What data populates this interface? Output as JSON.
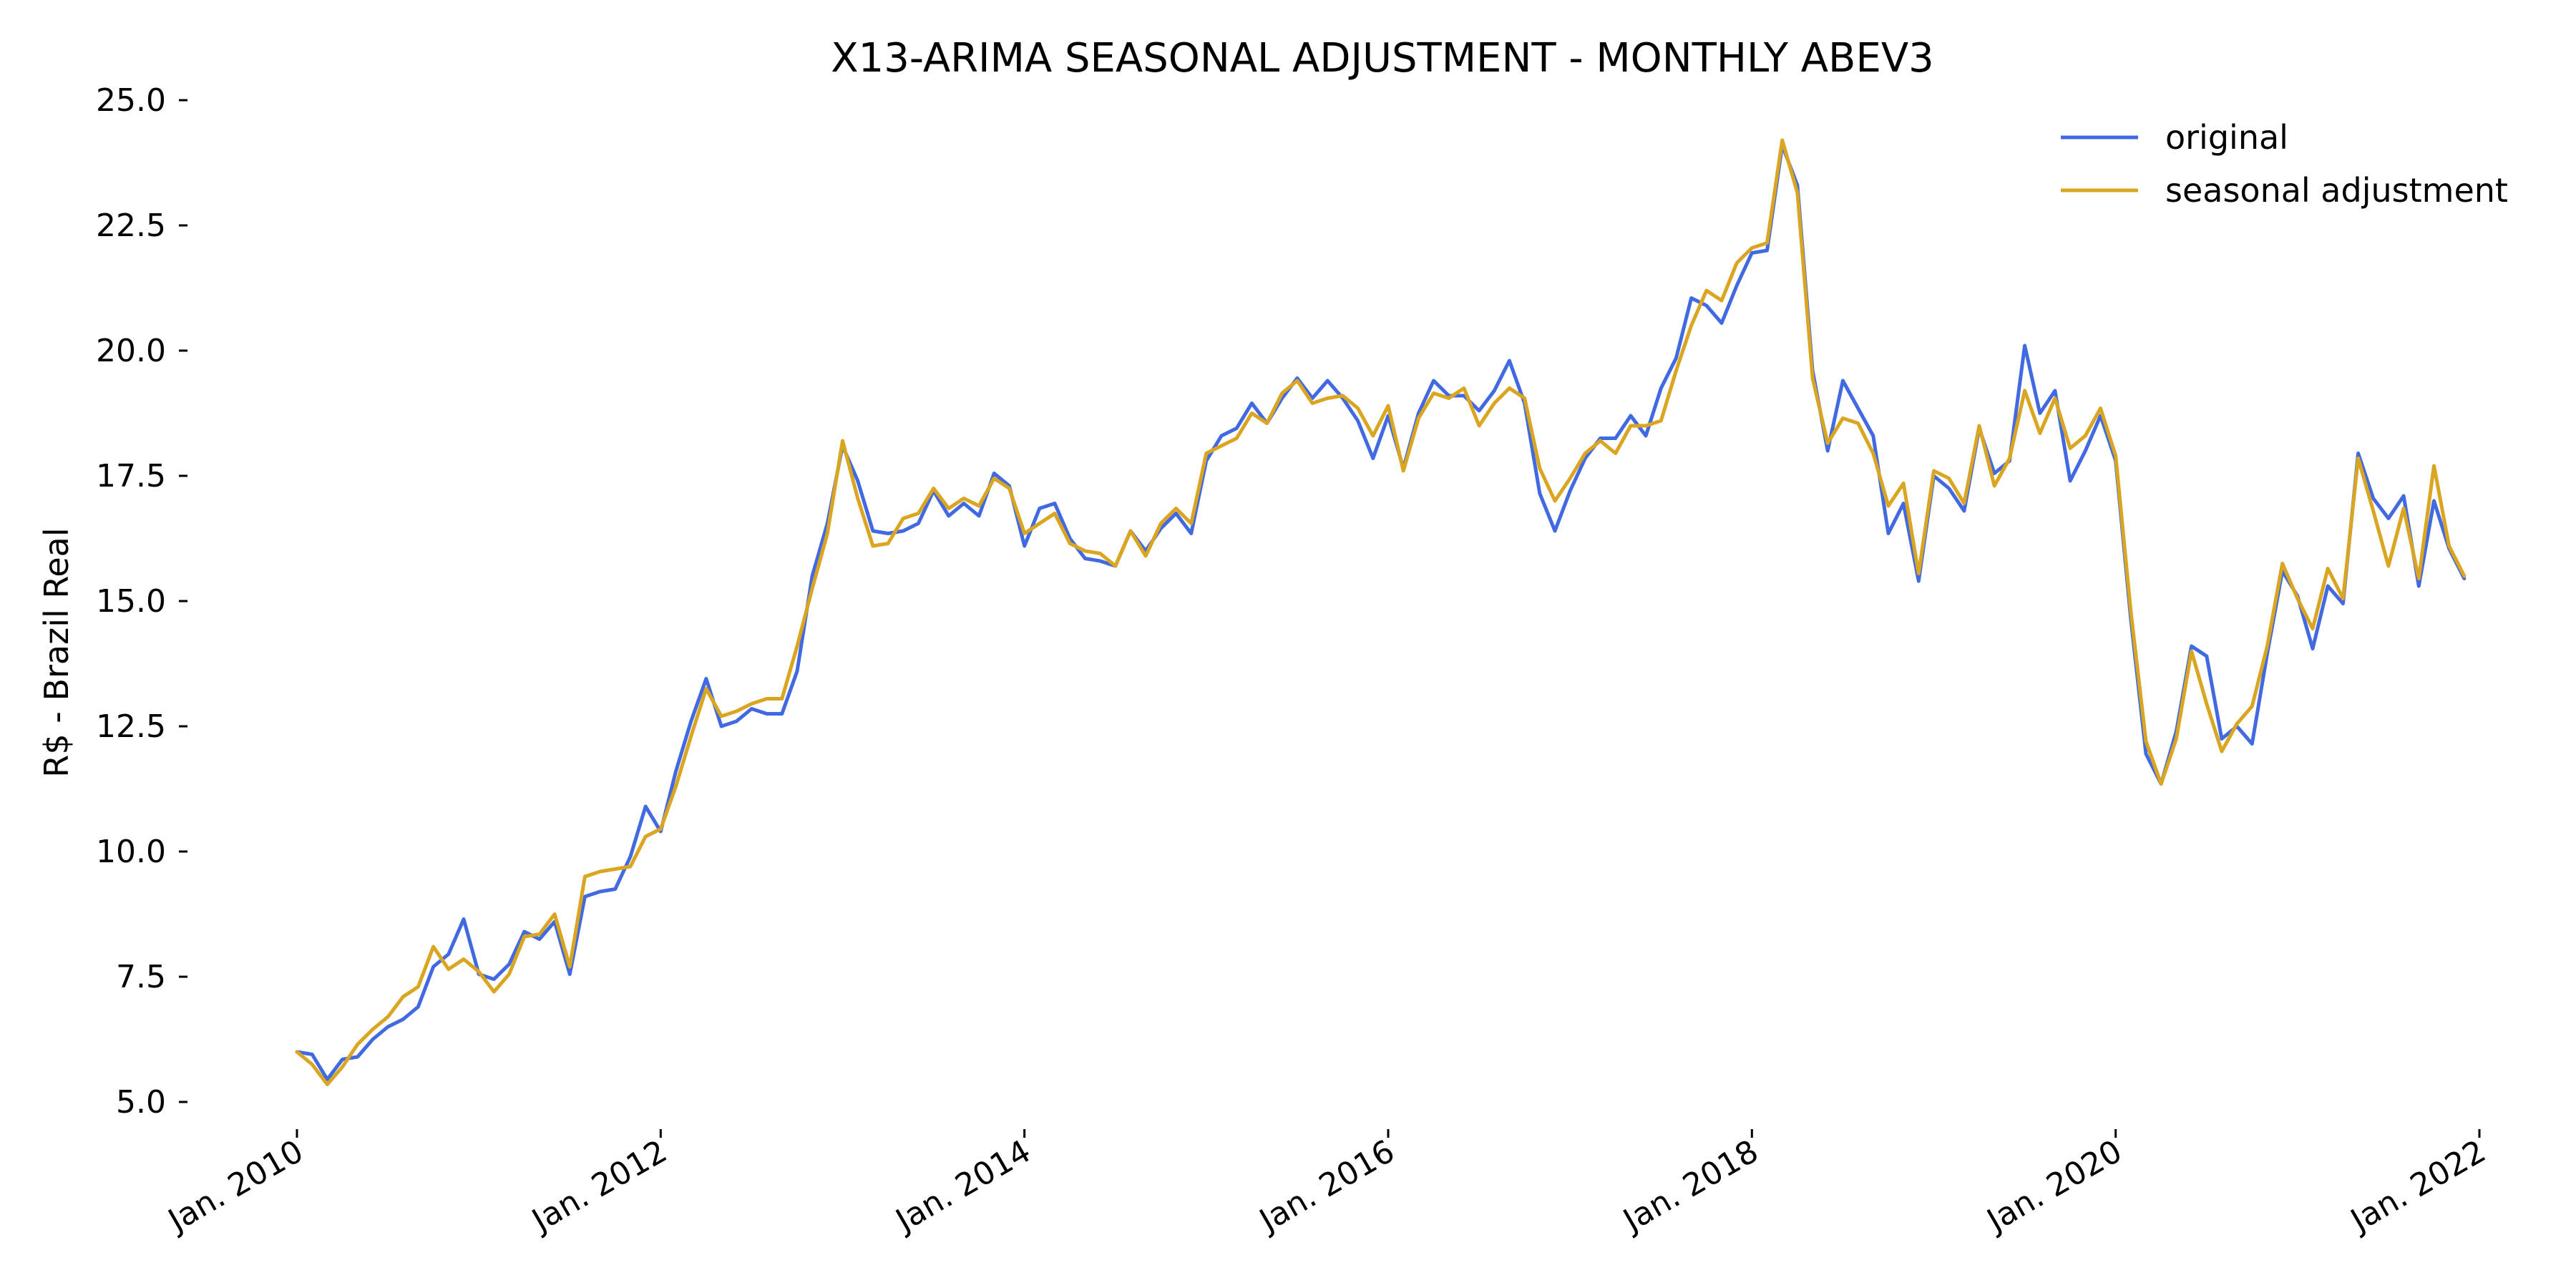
{
  "chart_data": {
    "type": "line",
    "title": "X13-ARIMA SEASONAL ADJUSTMENT - MONTHLY ABEV3",
    "xlabel": "",
    "ylabel": "R$ - Brazil Real",
    "ylim": [
      4.5,
      25.5
    ],
    "y_ticks": [
      "25.0",
      "22.5",
      "20.0",
      "17.5",
      "15.0",
      "12.5",
      "10.0",
      "7.5",
      "5.0"
    ],
    "x_ticks": [
      "Jan. 2010",
      "Jan. 2012",
      "Jan. 2014",
      "Jan. 2016",
      "Jan. 2018",
      "Jan. 2020",
      "Jan. 2022"
    ],
    "grid": false,
    "legend_position": "top-right",
    "x_dates": [
      "2010-01",
      "2010-02",
      "2010-03",
      "2010-04",
      "2010-05",
      "2010-06",
      "2010-07",
      "2010-08",
      "2010-09",
      "2010-10",
      "2010-11",
      "2010-12",
      "2011-01",
      "2011-02",
      "2011-03",
      "2011-04",
      "2011-05",
      "2011-06",
      "2011-07",
      "2011-08",
      "2011-09",
      "2011-10",
      "2011-11",
      "2011-12",
      "2012-01",
      "2012-02",
      "2012-03",
      "2012-04",
      "2012-05",
      "2012-06",
      "2012-07",
      "2012-08",
      "2012-09",
      "2012-10",
      "2012-11",
      "2012-12",
      "2013-01",
      "2013-02",
      "2013-03",
      "2013-04",
      "2013-05",
      "2013-06",
      "2013-07",
      "2013-08",
      "2013-09",
      "2013-10",
      "2013-11",
      "2013-12",
      "2014-01",
      "2014-02",
      "2014-03",
      "2014-04",
      "2014-05",
      "2014-06",
      "2014-07",
      "2014-08",
      "2014-09",
      "2014-10",
      "2014-11",
      "2014-12",
      "2015-01",
      "2015-02",
      "2015-03",
      "2015-04",
      "2015-05",
      "2015-06",
      "2015-07",
      "2015-08",
      "2015-09",
      "2015-10",
      "2015-11",
      "2015-12",
      "2016-01",
      "2016-02",
      "2016-03",
      "2016-04",
      "2016-05",
      "2016-06",
      "2016-07",
      "2016-08",
      "2016-09",
      "2016-10",
      "2016-11",
      "2016-12",
      "2017-01",
      "2017-02",
      "2017-03",
      "2017-04",
      "2017-05",
      "2017-06",
      "2017-07",
      "2017-08",
      "2017-09",
      "2017-10",
      "2017-11",
      "2017-12",
      "2018-01",
      "2018-02",
      "2018-03",
      "2018-04",
      "2018-05",
      "2018-06",
      "2018-07",
      "2018-08",
      "2018-09",
      "2018-10",
      "2018-11",
      "2018-12",
      "2019-01",
      "2019-02",
      "2019-03",
      "2019-04",
      "2019-05",
      "2019-06",
      "2019-07",
      "2019-08",
      "2019-09",
      "2019-10",
      "2019-11",
      "2019-12",
      "2020-01",
      "2020-02",
      "2020-03",
      "2020-04",
      "2020-05",
      "2020-06",
      "2020-07",
      "2020-08",
      "2020-09",
      "2020-10",
      "2020-11",
      "2020-12",
      "2021-01",
      "2021-02",
      "2021-03",
      "2021-04",
      "2021-05",
      "2021-06",
      "2021-07",
      "2021-08",
      "2021-09",
      "2021-10",
      "2021-11",
      "2021-12"
    ],
    "series": [
      {
        "name": "original",
        "color": "#4169E1",
        "values": [
          6.0,
          5.95,
          5.45,
          5.85,
          5.9,
          6.25,
          6.5,
          6.65,
          6.9,
          7.7,
          7.95,
          8.65,
          7.55,
          7.45,
          7.75,
          8.4,
          8.25,
          8.6,
          7.55,
          9.1,
          9.2,
          9.25,
          9.9,
          10.9,
          10.4,
          11.6,
          12.6,
          13.45,
          12.5,
          12.6,
          12.85,
          12.75,
          12.75,
          13.6,
          15.5,
          16.55,
          18.1,
          17.4,
          16.4,
          16.35,
          16.4,
          16.55,
          17.2,
          16.7,
          16.95,
          16.7,
          17.55,
          17.3,
          16.1,
          16.85,
          16.95,
          16.25,
          15.85,
          15.8,
          15.7,
          16.4,
          16.0,
          16.45,
          16.75,
          16.35,
          17.8,
          18.3,
          18.45,
          18.95,
          18.55,
          19.05,
          19.45,
          19.05,
          19.4,
          19.05,
          18.6,
          17.85,
          18.7,
          17.65,
          18.75,
          19.4,
          19.1,
          19.1,
          18.8,
          19.2,
          19.8,
          18.95,
          17.15,
          16.4,
          17.2,
          17.85,
          18.25,
          18.25,
          18.7,
          18.3,
          19.25,
          19.85,
          21.05,
          20.9,
          20.55,
          21.3,
          21.95,
          22.0,
          24.1,
          23.3,
          19.6,
          18.0,
          19.4,
          18.85,
          18.3,
          16.35,
          16.95,
          15.4,
          17.5,
          17.25,
          16.8,
          18.45,
          17.55,
          17.8,
          20.1,
          18.75,
          19.2,
          17.4,
          18.0,
          18.7,
          17.8,
          14.65,
          11.95,
          11.35,
          12.4,
          14.1,
          13.9,
          12.25,
          12.5,
          12.15,
          13.95,
          15.6,
          15.1,
          14.05,
          15.3,
          14.95,
          17.95,
          17.05,
          16.65,
          17.1,
          15.3,
          17.0,
          16.05,
          15.45
        ]
      },
      {
        "name": "seasonal adjustment",
        "color": "#DAA520",
        "values": [
          6.0,
          5.75,
          5.35,
          5.7,
          6.15,
          6.45,
          6.7,
          7.1,
          7.3,
          8.1,
          7.65,
          7.85,
          7.6,
          7.2,
          7.55,
          8.3,
          8.35,
          8.75,
          7.7,
          9.5,
          9.6,
          9.65,
          9.7,
          10.3,
          10.45,
          11.3,
          12.3,
          13.25,
          12.7,
          12.8,
          12.95,
          13.05,
          13.05,
          14.1,
          15.25,
          16.35,
          18.2,
          17.05,
          16.1,
          16.15,
          16.65,
          16.75,
          17.25,
          16.85,
          17.05,
          16.9,
          17.45,
          17.25,
          16.35,
          16.55,
          16.75,
          16.15,
          16.0,
          15.95,
          15.7,
          16.4,
          15.9,
          16.55,
          16.85,
          16.55,
          17.95,
          18.1,
          18.25,
          18.75,
          18.55,
          19.15,
          19.4,
          18.95,
          19.05,
          19.1,
          18.85,
          18.3,
          18.9,
          17.6,
          18.65,
          19.15,
          19.05,
          19.25,
          18.5,
          18.95,
          19.25,
          19.05,
          17.65,
          17.0,
          17.45,
          17.95,
          18.2,
          17.95,
          18.5,
          18.5,
          18.6,
          19.6,
          20.5,
          21.2,
          21.0,
          21.75,
          22.05,
          22.15,
          24.2,
          23.15,
          19.45,
          18.15,
          18.65,
          18.55,
          17.95,
          16.9,
          17.35,
          15.55,
          17.6,
          17.45,
          16.95,
          18.5,
          17.3,
          17.85,
          19.2,
          18.35,
          19.05,
          18.05,
          18.3,
          18.85,
          17.9,
          14.8,
          12.2,
          11.35,
          12.25,
          14.0,
          12.95,
          12.0,
          12.55,
          12.9,
          14.1,
          15.75,
          15.05,
          14.45,
          15.65,
          15.05,
          17.85,
          16.8,
          15.7,
          16.85,
          15.45,
          17.7,
          16.1,
          15.5
        ]
      }
    ]
  }
}
